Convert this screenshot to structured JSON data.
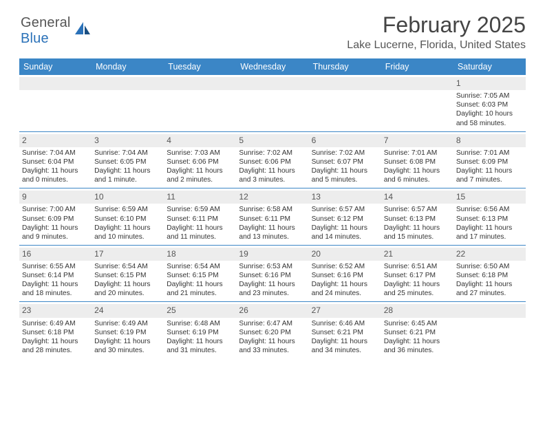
{
  "logo": {
    "word1": "General",
    "word2": "Blue"
  },
  "header": {
    "title": "February 2025",
    "subtitle": "Lake Lucerne, Florida, United States"
  },
  "colors": {
    "header_bar": "#3b86c6",
    "row_divider": "#3b86c6",
    "daynum_band": "#ededed",
    "background": "#ffffff",
    "text": "#333333",
    "logo_gray": "#555555",
    "logo_blue": "#2a71b8"
  },
  "day_names": [
    "Sunday",
    "Monday",
    "Tuesday",
    "Wednesday",
    "Thursday",
    "Friday",
    "Saturday"
  ],
  "weeks": [
    [
      {
        "day": ""
      },
      {
        "day": ""
      },
      {
        "day": ""
      },
      {
        "day": ""
      },
      {
        "day": ""
      },
      {
        "day": ""
      },
      {
        "day": "1",
        "l1": "Sunrise: 7:05 AM",
        "l2": "Sunset: 6:03 PM",
        "l3": "Daylight: 10 hours",
        "l4": "and 58 minutes."
      }
    ],
    [
      {
        "day": "2",
        "l1": "Sunrise: 7:04 AM",
        "l2": "Sunset: 6:04 PM",
        "l3": "Daylight: 11 hours",
        "l4": "and 0 minutes."
      },
      {
        "day": "3",
        "l1": "Sunrise: 7:04 AM",
        "l2": "Sunset: 6:05 PM",
        "l3": "Daylight: 11 hours",
        "l4": "and 1 minute."
      },
      {
        "day": "4",
        "l1": "Sunrise: 7:03 AM",
        "l2": "Sunset: 6:06 PM",
        "l3": "Daylight: 11 hours",
        "l4": "and 2 minutes."
      },
      {
        "day": "5",
        "l1": "Sunrise: 7:02 AM",
        "l2": "Sunset: 6:06 PM",
        "l3": "Daylight: 11 hours",
        "l4": "and 3 minutes."
      },
      {
        "day": "6",
        "l1": "Sunrise: 7:02 AM",
        "l2": "Sunset: 6:07 PM",
        "l3": "Daylight: 11 hours",
        "l4": "and 5 minutes."
      },
      {
        "day": "7",
        "l1": "Sunrise: 7:01 AM",
        "l2": "Sunset: 6:08 PM",
        "l3": "Daylight: 11 hours",
        "l4": "and 6 minutes."
      },
      {
        "day": "8",
        "l1": "Sunrise: 7:01 AM",
        "l2": "Sunset: 6:09 PM",
        "l3": "Daylight: 11 hours",
        "l4": "and 7 minutes."
      }
    ],
    [
      {
        "day": "9",
        "l1": "Sunrise: 7:00 AM",
        "l2": "Sunset: 6:09 PM",
        "l3": "Daylight: 11 hours",
        "l4": "and 9 minutes."
      },
      {
        "day": "10",
        "l1": "Sunrise: 6:59 AM",
        "l2": "Sunset: 6:10 PM",
        "l3": "Daylight: 11 hours",
        "l4": "and 10 minutes."
      },
      {
        "day": "11",
        "l1": "Sunrise: 6:59 AM",
        "l2": "Sunset: 6:11 PM",
        "l3": "Daylight: 11 hours",
        "l4": "and 11 minutes."
      },
      {
        "day": "12",
        "l1": "Sunrise: 6:58 AM",
        "l2": "Sunset: 6:11 PM",
        "l3": "Daylight: 11 hours",
        "l4": "and 13 minutes."
      },
      {
        "day": "13",
        "l1": "Sunrise: 6:57 AM",
        "l2": "Sunset: 6:12 PM",
        "l3": "Daylight: 11 hours",
        "l4": "and 14 minutes."
      },
      {
        "day": "14",
        "l1": "Sunrise: 6:57 AM",
        "l2": "Sunset: 6:13 PM",
        "l3": "Daylight: 11 hours",
        "l4": "and 15 minutes."
      },
      {
        "day": "15",
        "l1": "Sunrise: 6:56 AM",
        "l2": "Sunset: 6:13 PM",
        "l3": "Daylight: 11 hours",
        "l4": "and 17 minutes."
      }
    ],
    [
      {
        "day": "16",
        "l1": "Sunrise: 6:55 AM",
        "l2": "Sunset: 6:14 PM",
        "l3": "Daylight: 11 hours",
        "l4": "and 18 minutes."
      },
      {
        "day": "17",
        "l1": "Sunrise: 6:54 AM",
        "l2": "Sunset: 6:15 PM",
        "l3": "Daylight: 11 hours",
        "l4": "and 20 minutes."
      },
      {
        "day": "18",
        "l1": "Sunrise: 6:54 AM",
        "l2": "Sunset: 6:15 PM",
        "l3": "Daylight: 11 hours",
        "l4": "and 21 minutes."
      },
      {
        "day": "19",
        "l1": "Sunrise: 6:53 AM",
        "l2": "Sunset: 6:16 PM",
        "l3": "Daylight: 11 hours",
        "l4": "and 23 minutes."
      },
      {
        "day": "20",
        "l1": "Sunrise: 6:52 AM",
        "l2": "Sunset: 6:16 PM",
        "l3": "Daylight: 11 hours",
        "l4": "and 24 minutes."
      },
      {
        "day": "21",
        "l1": "Sunrise: 6:51 AM",
        "l2": "Sunset: 6:17 PM",
        "l3": "Daylight: 11 hours",
        "l4": "and 25 minutes."
      },
      {
        "day": "22",
        "l1": "Sunrise: 6:50 AM",
        "l2": "Sunset: 6:18 PM",
        "l3": "Daylight: 11 hours",
        "l4": "and 27 minutes."
      }
    ],
    [
      {
        "day": "23",
        "l1": "Sunrise: 6:49 AM",
        "l2": "Sunset: 6:18 PM",
        "l3": "Daylight: 11 hours",
        "l4": "and 28 minutes."
      },
      {
        "day": "24",
        "l1": "Sunrise: 6:49 AM",
        "l2": "Sunset: 6:19 PM",
        "l3": "Daylight: 11 hours",
        "l4": "and 30 minutes."
      },
      {
        "day": "25",
        "l1": "Sunrise: 6:48 AM",
        "l2": "Sunset: 6:19 PM",
        "l3": "Daylight: 11 hours",
        "l4": "and 31 minutes."
      },
      {
        "day": "26",
        "l1": "Sunrise: 6:47 AM",
        "l2": "Sunset: 6:20 PM",
        "l3": "Daylight: 11 hours",
        "l4": "and 33 minutes."
      },
      {
        "day": "27",
        "l1": "Sunrise: 6:46 AM",
        "l2": "Sunset: 6:21 PM",
        "l3": "Daylight: 11 hours",
        "l4": "and 34 minutes."
      },
      {
        "day": "28",
        "l1": "Sunrise: 6:45 AM",
        "l2": "Sunset: 6:21 PM",
        "l3": "Daylight: 11 hours",
        "l4": "and 36 minutes."
      },
      {
        "day": ""
      }
    ]
  ]
}
